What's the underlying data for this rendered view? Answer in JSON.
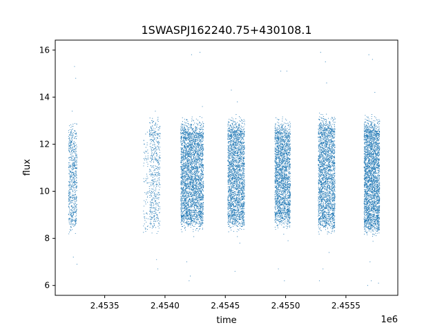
{
  "chart_data": {
    "type": "scatter",
    "title": "1SWASPJ162240.75+430108.1",
    "xlabel": "time",
    "ylabel": "flux",
    "x_offset_label": "1e6",
    "xlim": [
      2.45309,
      2.45593
    ],
    "ylim": [
      5.58,
      16.42
    ],
    "x_ticks": [
      2.4535,
      2.454,
      2.4545,
      2.455,
      2.4555
    ],
    "x_tick_labels": [
      "2.4535",
      "2.4540",
      "2.4545",
      "2.4550",
      "2.4555"
    ],
    "y_ticks": [
      6,
      8,
      10,
      12,
      14,
      16
    ],
    "y_tick_labels": [
      "6",
      "8",
      "10",
      "12",
      "14",
      "16"
    ],
    "grid": false,
    "marker_color": "#1f77b4",
    "series": [
      {
        "clusters": [
          {
            "x_range": [
              2.4532,
              2.45327
            ],
            "core": [
              8.7,
              12.3
            ],
            "density": 0.55,
            "outliers": [
              [
                2.45325,
                15.3
              ],
              [
                2.45326,
                14.8
              ],
              [
                2.45324,
                7.2
              ],
              [
                2.45327,
                6.9
              ],
              [
                2.45323,
                13.4
              ]
            ]
          },
          {
            "x_range": [
              2.45382,
              2.45386
            ],
            "core": [
              8.6,
              12.1
            ],
            "density": 0.12,
            "outliers": [
              [
                2.45384,
                8.3
              ]
            ]
          },
          {
            "x_range": [
              2.45387,
              2.45396
            ],
            "core": [
              8.8,
              12.6
            ],
            "density": 0.35,
            "outliers": [
              [
                2.45392,
                13.4
              ],
              [
                2.45393,
                7.1
              ],
              [
                2.45394,
                6.7
              ],
              [
                2.45389,
                13.0
              ]
            ]
          },
          {
            "x_range": [
              2.45413,
              2.45432
            ],
            "core": [
              8.9,
              12.5
            ],
            "density": 1.0,
            "outliers": [
              [
                2.45422,
                15.8
              ],
              [
                2.45429,
                15.9
              ],
              [
                2.4542,
                6.2
              ],
              [
                2.45421,
                6.4
              ],
              [
                2.45431,
                13.6
              ],
              [
                2.45418,
                7.0
              ]
            ]
          },
          {
            "x_range": [
              2.45452,
              2.45466
            ],
            "core": [
              8.9,
              12.6
            ],
            "density": 1.0,
            "outliers": [
              [
                2.45455,
                14.3
              ],
              [
                2.4546,
                13.8
              ],
              [
                2.45458,
                6.6
              ],
              [
                2.45462,
                7.8
              ],
              [
                2.45457,
                8.3
              ]
            ]
          },
          {
            "x_range": [
              2.45491,
              2.45504
            ],
            "core": [
              9.0,
              12.5
            ],
            "density": 1.0,
            "outliers": [
              [
                2.45496,
                15.1
              ],
              [
                2.45501,
                15.1
              ],
              [
                2.45494,
                6.7
              ],
              [
                2.45499,
                6.2
              ],
              [
                2.45502,
                7.9
              ]
            ]
          },
          {
            "x_range": [
              2.45527,
              2.45541
            ],
            "core": [
              8.8,
              12.7
            ],
            "density": 1.0,
            "outliers": [
              [
                2.45529,
                15.9
              ],
              [
                2.45533,
                15.5
              ],
              [
                2.45528,
                6.2
              ],
              [
                2.45531,
                6.7
              ],
              [
                2.45534,
                14.6
              ],
              [
                2.45536,
                7.4
              ]
            ]
          },
          {
            "x_range": [
              2.45565,
              2.45578
            ],
            "core": [
              8.7,
              12.6
            ],
            "density": 1.3,
            "outliers": [
              [
                2.45569,
                15.8
              ],
              [
                2.45572,
                15.6
              ],
              [
                2.45568,
                6.0
              ],
              [
                2.45571,
                6.2
              ],
              [
                2.45574,
                14.2
              ],
              [
                2.45577,
                6.1
              ],
              [
                2.4557,
                7.0
              ]
            ]
          }
        ]
      }
    ]
  }
}
